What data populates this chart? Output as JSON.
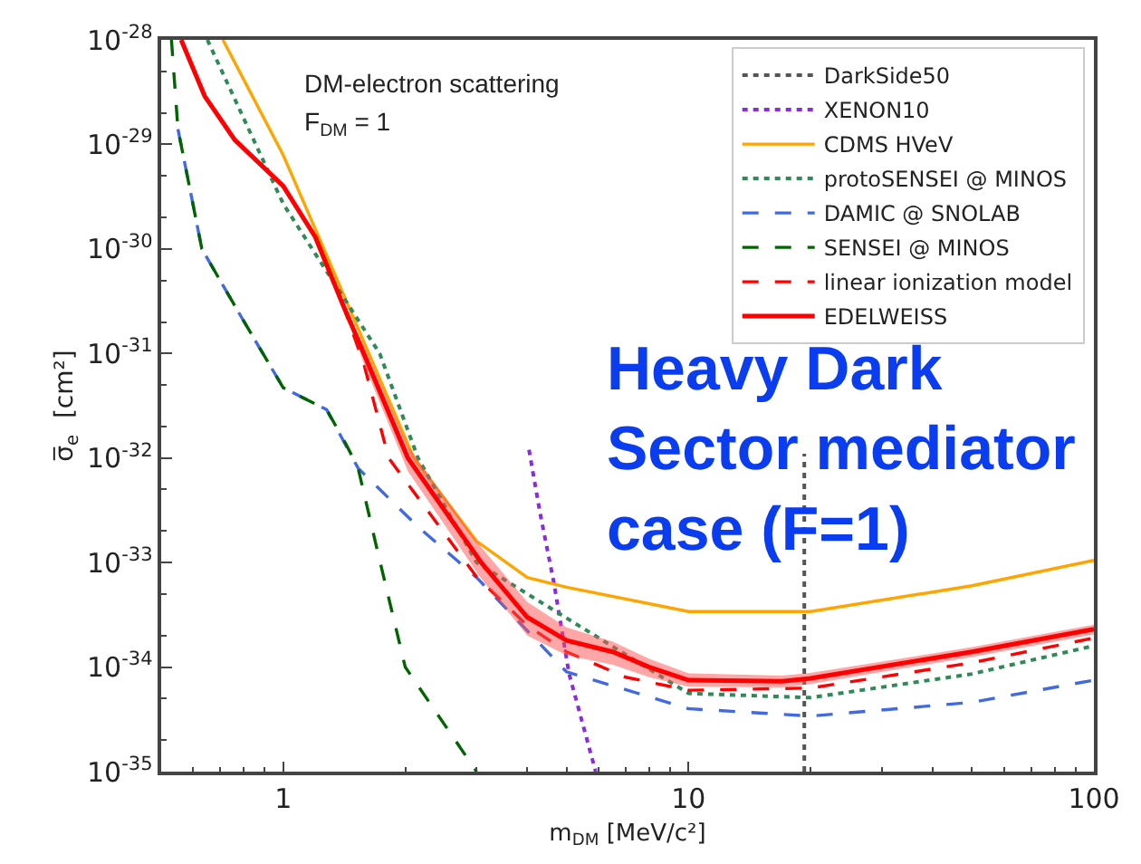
{
  "chart_data": {
    "type": "line",
    "xlabel": "m$_{DM}$ [MeV/c²]",
    "ylabel": "σ̅$_{e}$  [cm²]",
    "annotations": [
      "DM-electron scattering",
      "F$_{DM}$ = 1",
      "Heavy Dark\nSector mediator\ncase (F=1)"
    ],
    "log": "xy",
    "xlim": [
      0.5,
      100
    ],
    "ylim": [
      1e-35,
      1e-28
    ],
    "xticks": [
      1,
      10,
      100
    ],
    "yticks": [
      {
        "value": 1e-28,
        "label": "10$^{-28}$"
      },
      {
        "value": 1e-29,
        "label": "10$^{-29}$"
      },
      {
        "value": 1e-30,
        "label": "10$^{-30}$"
      },
      {
        "value": 1e-31,
        "label": "10$^{-31}$"
      },
      {
        "value": 1e-32,
        "label": "10$^{-32}$"
      },
      {
        "value": 1e-33,
        "label": "10$^{-33}$"
      },
      {
        "value": 1e-34,
        "label": "10$^{-34}$"
      },
      {
        "value": 1e-35,
        "label": "10$^{-35}$"
      }
    ],
    "legend": "top right",
    "series": [
      {
        "name": "DarkSide50",
        "color": "#555555",
        "line_style": "dotted",
        "x": [
          19.3,
          19.3
        ],
        "values": [
          1e-35,
          1.1e-32
        ]
      },
      {
        "name": "XENON10",
        "color": "#8a2be2",
        "line_style": "dotted",
        "x": [
          4.04,
          4.3,
          4.65,
          5.07,
          5.9
        ],
        "values": [
          1.2e-32,
          3e-33,
          6.5e-34,
          8.7e-35,
          1e-35
        ]
      },
      {
        "name": "CDMS HVeV",
        "color": "#ffa500",
        "line_style": "solid",
        "x": [
          0.71,
          1,
          1.26,
          2.1,
          3,
          4,
          5,
          10,
          20,
          50,
          100
        ],
        "values": [
          1e-28,
          7.9e-30,
          1e-30,
          1e-32,
          1.6e-33,
          7.2e-34,
          5.8e-34,
          3.4e-34,
          3.4e-34,
          6e-34,
          1.05e-33
        ]
      },
      {
        "name": "protoSENSEI @ MINOS",
        "color": "#2e8b57",
        "line_style": "dotted",
        "x": [
          0.65,
          1,
          1.26,
          1.73,
          2.15,
          3,
          5,
          10,
          20,
          50,
          100
        ],
        "values": [
          1e-28,
          2.7e-30,
          6.7e-31,
          1e-31,
          1e-32,
          1e-33,
          null,
          5.6e-35,
          5.1e-35,
          8.6e-35,
          1.6e-34
        ]
      },
      {
        "name": "DAMIC @ SNOLAB",
        "color": "#4169e1",
        "line_style": "dashed",
        "x": [
          0.55,
          0.63,
          0.79,
          1,
          1.28,
          1.53,
          2.15,
          3,
          5,
          10,
          20,
          50,
          100
        ],
        "values": [
          1.4e-29,
          1e-30,
          2.2e-31,
          4.7e-32,
          2.9e-32,
          8e-33,
          2.2e-33,
          7.2e-34,
          9e-35,
          4e-35,
          3.4e-35,
          4.6e-35,
          7.5e-35
        ]
      },
      {
        "name": "SENSEI @ MINOS",
        "color": "#006400",
        "line_style": "dashed",
        "x": [
          0.53,
          0.55,
          0.63,
          0.79,
          1,
          1.28,
          1.43,
          1.53,
          1.7,
          2,
          3
        ],
        "values": [
          1e-28,
          1.4e-29,
          1e-30,
          2.2e-31,
          4.7e-32,
          2.9e-32,
          1.35e-32,
          8e-33,
          1.4e-33,
          1e-34,
          1e-35
        ]
      },
      {
        "name": "linear ionization model",
        "color": "#ff0000",
        "line_style": "dashed",
        "x": [
          1.4,
          1.58,
          1.82,
          3,
          4,
          5,
          7,
          10,
          20,
          50,
          100
        ],
        "values": [
          3e-31,
          8e-32,
          1e-32,
          7.3e-34,
          2.5e-34,
          1.4e-34,
          8e-35,
          6e-35,
          6.3e-35,
          1.1e-34,
          1.9e-34
        ]
      },
      {
        "name": "EDELWEISS",
        "color": "#ff0000",
        "line_style": "solid",
        "x": [
          0.56,
          0.64,
          0.76,
          1,
          1.2,
          1.4,
          1.58,
          2.03,
          3.08,
          4,
          5,
          6.5,
          8,
          10,
          17,
          20,
          50,
          100
        ],
        "values": [
          1e-28,
          2.9e-29,
          1.1e-29,
          4e-30,
          1.3e-30,
          3e-31,
          1e-31,
          1e-32,
          1e-33,
          3e-34,
          1.8e-34,
          1.4e-34,
          1e-34,
          7.5e-35,
          7.3e-35,
          7.8e-35,
          1.4e-34,
          2.3e-34
        ],
        "lower": [
          1e-28,
          2.9e-29,
          1.1e-29,
          4e-30,
          1.3e-30,
          3e-31,
          8e-32,
          7.5e-33,
          7e-34,
          2e-34,
          1.3e-34,
          1.05e-34,
          8e-35,
          6.5e-35,
          6.4e-35,
          6.9e-35,
          1.25e-34,
          2.05e-34
        ],
        "upper": [
          1e-28,
          2.9e-29,
          1.1e-29,
          4e-30,
          1.3e-30,
          3e-31,
          1.2e-31,
          1.3e-32,
          1.4e-33,
          4.2e-34,
          2.4e-34,
          1.75e-34,
          1.2e-34,
          8.7e-35,
          8.3e-35,
          8.8e-35,
          1.55e-34,
          2.55e-34
        ]
      }
    ]
  }
}
